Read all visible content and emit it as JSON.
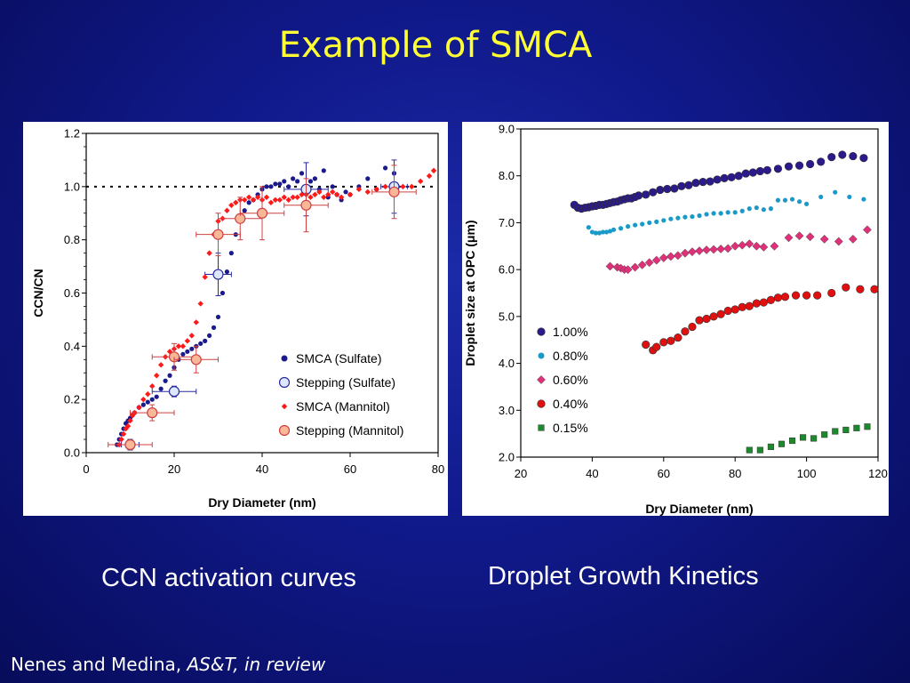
{
  "slide": {
    "title": "Example of SMCA",
    "caption_left": "CCN activation curves",
    "caption_right": "Droplet Growth Kinetics",
    "citation_authors": "Nenes and Medina,",
    "citation_journal": "AS&T, in review"
  },
  "chart_data": [
    {
      "type": "scatter",
      "title": "",
      "xlabel": "Dry Diameter (nm)",
      "ylabel": "CCN/CN",
      "xlim": [
        0,
        80
      ],
      "ylim": [
        0,
        1.2
      ],
      "x_ticks": [
        "0",
        "20",
        "40",
        "60",
        "80"
      ],
      "y_ticks": [
        "0.0",
        "0.2",
        "0.4",
        "0.6",
        "0.8",
        "1.0",
        "1.2"
      ],
      "reference_line": {
        "y": 1.0,
        "style": "dotted"
      },
      "legend_position": "bottom-right",
      "series": [
        {
          "name": "SMCA (Sulfate)",
          "marker": "circle-small",
          "color": "#1a1a8c",
          "x": [
            7,
            7.5,
            8,
            8.5,
            9,
            9.5,
            10,
            10.5,
            11,
            12,
            13,
            14,
            15,
            16,
            17,
            18,
            19,
            20,
            21,
            22,
            23,
            24,
            25,
            26,
            27,
            28,
            29,
            30,
            31,
            32,
            33,
            34,
            35,
            36,
            37,
            38,
            39,
            40,
            41,
            42,
            43,
            44,
            45,
            46,
            47,
            48,
            49,
            50,
            51,
            52,
            53,
            54,
            55,
            56,
            57,
            58,
            59,
            60,
            62,
            64,
            66,
            68,
            70
          ],
          "y": [
            0.03,
            0.05,
            0.07,
            0.09,
            0.11,
            0.12,
            0.13,
            0.14,
            0.15,
            0.17,
            0.18,
            0.19,
            0.2,
            0.21,
            0.24,
            0.27,
            0.29,
            0.32,
            0.35,
            0.37,
            0.38,
            0.39,
            0.4,
            0.41,
            0.42,
            0.44,
            0.47,
            0.51,
            0.6,
            0.68,
            0.75,
            0.82,
            0.87,
            0.91,
            0.94,
            0.95,
            0.97,
            0.99,
            1.0,
            1.0,
            1.01,
            1.01,
            1.02,
            1.0,
            1.03,
            1.02,
            1.05,
            1.0,
            1.02,
            1.03,
            0.99,
            1.06,
            0.96,
            1.0,
            0.97,
            0.95,
            0.98,
            0.97,
            1.0,
            1.03,
            0.99,
            1.07,
            1.05
          ]
        },
        {
          "name": "Stepping (Sulfate)",
          "marker": "circle-open",
          "color": "#2a2aa0",
          "fill": "#dde8ff",
          "x": [
            10,
            20,
            30,
            50,
            70
          ],
          "y": [
            0.03,
            0.23,
            0.67,
            0.99,
            1.0
          ],
          "x_err": [
            2,
            5,
            3,
            5,
            3
          ],
          "y_err": [
            0.02,
            0.02,
            0.08,
            0.1,
            0.1
          ]
        },
        {
          "name": "SMCA (Mannitol)",
          "marker": "diamond-small",
          "color": "#ff1a1a",
          "x": [
            7.5,
            8,
            8.5,
            9,
            9.5,
            10,
            10.5,
            11,
            12,
            13,
            14,
            15,
            16,
            17,
            18,
            19,
            20,
            21,
            22,
            23,
            24,
            25,
            26,
            27,
            28,
            29,
            30,
            31,
            32,
            33,
            34,
            35,
            36,
            37,
            38,
            39,
            40,
            41,
            42,
            43,
            44,
            45,
            46,
            47,
            48,
            49,
            50,
            51,
            52,
            53,
            54,
            55,
            56,
            57,
            58,
            60,
            62,
            64,
            66,
            68,
            70,
            72,
            74,
            76,
            78,
            79
          ],
          "y": [
            0.03,
            0.05,
            0.07,
            0.09,
            0.1,
            0.12,
            0.14,
            0.15,
            0.17,
            0.2,
            0.22,
            0.25,
            0.29,
            0.33,
            0.36,
            0.38,
            0.39,
            0.4,
            0.4,
            0.42,
            0.44,
            0.49,
            0.56,
            0.66,
            0.75,
            0.82,
            0.87,
            0.88,
            0.91,
            0.93,
            0.94,
            0.95,
            0.95,
            0.96,
            0.95,
            0.96,
            0.95,
            0.96,
            0.94,
            0.95,
            0.95,
            0.96,
            0.95,
            0.96,
            0.96,
            0.97,
            0.97,
            0.96,
            0.97,
            0.98,
            0.96,
            0.97,
            0.98,
            0.97,
            0.96,
            0.97,
            0.99,
            0.98,
            0.99,
            1.0,
            0.99,
            1.0,
            1.0,
            1.02,
            1.04,
            1.06
          ]
        },
        {
          "name": "Stepping (Mannitol)",
          "marker": "circle-filled",
          "color": "#d04040",
          "fill": "#f8b898",
          "x": [
            10,
            15,
            20,
            25,
            30,
            35,
            40,
            50,
            70
          ],
          "y": [
            0.03,
            0.15,
            0.36,
            0.35,
            0.82,
            0.88,
            0.9,
            0.93,
            0.98
          ],
          "x_err": [
            5,
            5,
            5,
            5,
            5,
            5,
            5,
            5,
            5
          ],
          "y_err": [
            0.01,
            0.03,
            0.05,
            0.05,
            0.08,
            0.08,
            0.1,
            0.1,
            0.1
          ]
        }
      ]
    },
    {
      "type": "scatter",
      "title": "",
      "xlabel": "Dry Diameter (nm)",
      "ylabel": "Droplet size at OPC (μm)",
      "xlim": [
        20,
        120
      ],
      "ylim": [
        2.0,
        9.0
      ],
      "x_ticks": [
        "20",
        "40",
        "60",
        "80",
        "100",
        "120"
      ],
      "y_ticks": [
        "2.0",
        "3.0",
        "4.0",
        "5.0",
        "6.0",
        "7.0",
        "8.0",
        "9.0"
      ],
      "legend_position": "bottom-left",
      "series": [
        {
          "name": "1.00%",
          "marker": "circle",
          "color": "#2a1a8a",
          "x": [
            35,
            36,
            37,
            38,
            39,
            40,
            41,
            42,
            43,
            44,
            45,
            46,
            47,
            48,
            49,
            50,
            51,
            52,
            53,
            55,
            57,
            59,
            61,
            63,
            65,
            67,
            69,
            71,
            73,
            75,
            77,
            79,
            81,
            83,
            85,
            87,
            89,
            92,
            95,
            98,
            101,
            104,
            107,
            110,
            113,
            116
          ],
          "y": [
            7.38,
            7.32,
            7.3,
            7.32,
            7.33,
            7.35,
            7.36,
            7.38,
            7.38,
            7.4,
            7.42,
            7.44,
            7.45,
            7.48,
            7.5,
            7.52,
            7.52,
            7.55,
            7.58,
            7.6,
            7.65,
            7.7,
            7.72,
            7.73,
            7.78,
            7.8,
            7.85,
            7.87,
            7.88,
            7.92,
            7.95,
            7.97,
            8.0,
            8.05,
            8.07,
            8.1,
            8.12,
            8.15,
            8.2,
            8.22,
            8.25,
            8.3,
            8.4,
            8.45,
            8.42,
            8.38
          ]
        },
        {
          "name": "0.80%",
          "marker": "circle-small",
          "color": "#1a9ac8",
          "x": [
            39,
            40,
            41,
            42,
            43,
            44,
            45,
            46,
            48,
            50,
            52,
            54,
            56,
            58,
            60,
            62,
            64,
            66,
            68,
            70,
            72,
            74,
            76,
            78,
            80,
            82,
            84,
            86,
            88,
            90,
            92,
            94,
            96,
            98,
            100,
            104,
            108,
            112,
            116
          ],
          "y": [
            6.9,
            6.8,
            6.78,
            6.78,
            6.8,
            6.8,
            6.82,
            6.85,
            6.88,
            6.92,
            6.95,
            6.97,
            7.0,
            7.02,
            7.05,
            7.08,
            7.1,
            7.12,
            7.13,
            7.15,
            7.18,
            7.2,
            7.2,
            7.22,
            7.22,
            7.25,
            7.3,
            7.32,
            7.28,
            7.3,
            7.48,
            7.48,
            7.5,
            7.45,
            7.4,
            7.55,
            7.65,
            7.55,
            7.5
          ]
        },
        {
          "name": "0.60%",
          "marker": "diamond",
          "color": "#e0307a",
          "x": [
            45,
            47,
            48,
            49,
            50,
            52,
            54,
            56,
            58,
            60,
            62,
            64,
            66,
            68,
            70,
            72,
            74,
            76,
            78,
            80,
            82,
            84,
            86,
            88,
            91,
            95,
            98,
            101,
            105,
            109,
            113,
            117
          ],
          "y": [
            6.07,
            6.05,
            6.03,
            6.0,
            6.0,
            6.05,
            6.1,
            6.15,
            6.2,
            6.25,
            6.28,
            6.3,
            6.35,
            6.38,
            6.4,
            6.42,
            6.43,
            6.44,
            6.45,
            6.5,
            6.52,
            6.55,
            6.5,
            6.48,
            6.5,
            6.68,
            6.72,
            6.7,
            6.65,
            6.6,
            6.65,
            6.85
          ]
        },
        {
          "name": "0.40%",
          "marker": "circle",
          "color": "#e01010",
          "x": [
            55,
            57,
            58,
            60,
            62,
            64,
            66,
            68,
            70,
            72,
            74,
            76,
            78,
            80,
            82,
            84,
            86,
            88,
            90,
            92,
            94,
            97,
            100,
            103,
            107,
            111,
            115,
            119
          ],
          "y": [
            4.4,
            4.28,
            4.35,
            4.45,
            4.48,
            4.55,
            4.68,
            4.78,
            4.92,
            4.95,
            5.0,
            5.05,
            5.12,
            5.15,
            5.2,
            5.22,
            5.28,
            5.3,
            5.35,
            5.4,
            5.42,
            5.45,
            5.45,
            5.45,
            5.5,
            5.62,
            5.58,
            5.58
          ]
        },
        {
          "name": "0.15%",
          "marker": "square",
          "color": "#1a8a2a",
          "x": [
            84,
            87,
            90,
            93,
            96,
            99,
            102,
            105,
            108,
            111,
            114,
            117
          ],
          "y": [
            2.15,
            2.15,
            2.22,
            2.28,
            2.35,
            2.42,
            2.4,
            2.48,
            2.55,
            2.58,
            2.62,
            2.65
          ]
        }
      ]
    }
  ]
}
